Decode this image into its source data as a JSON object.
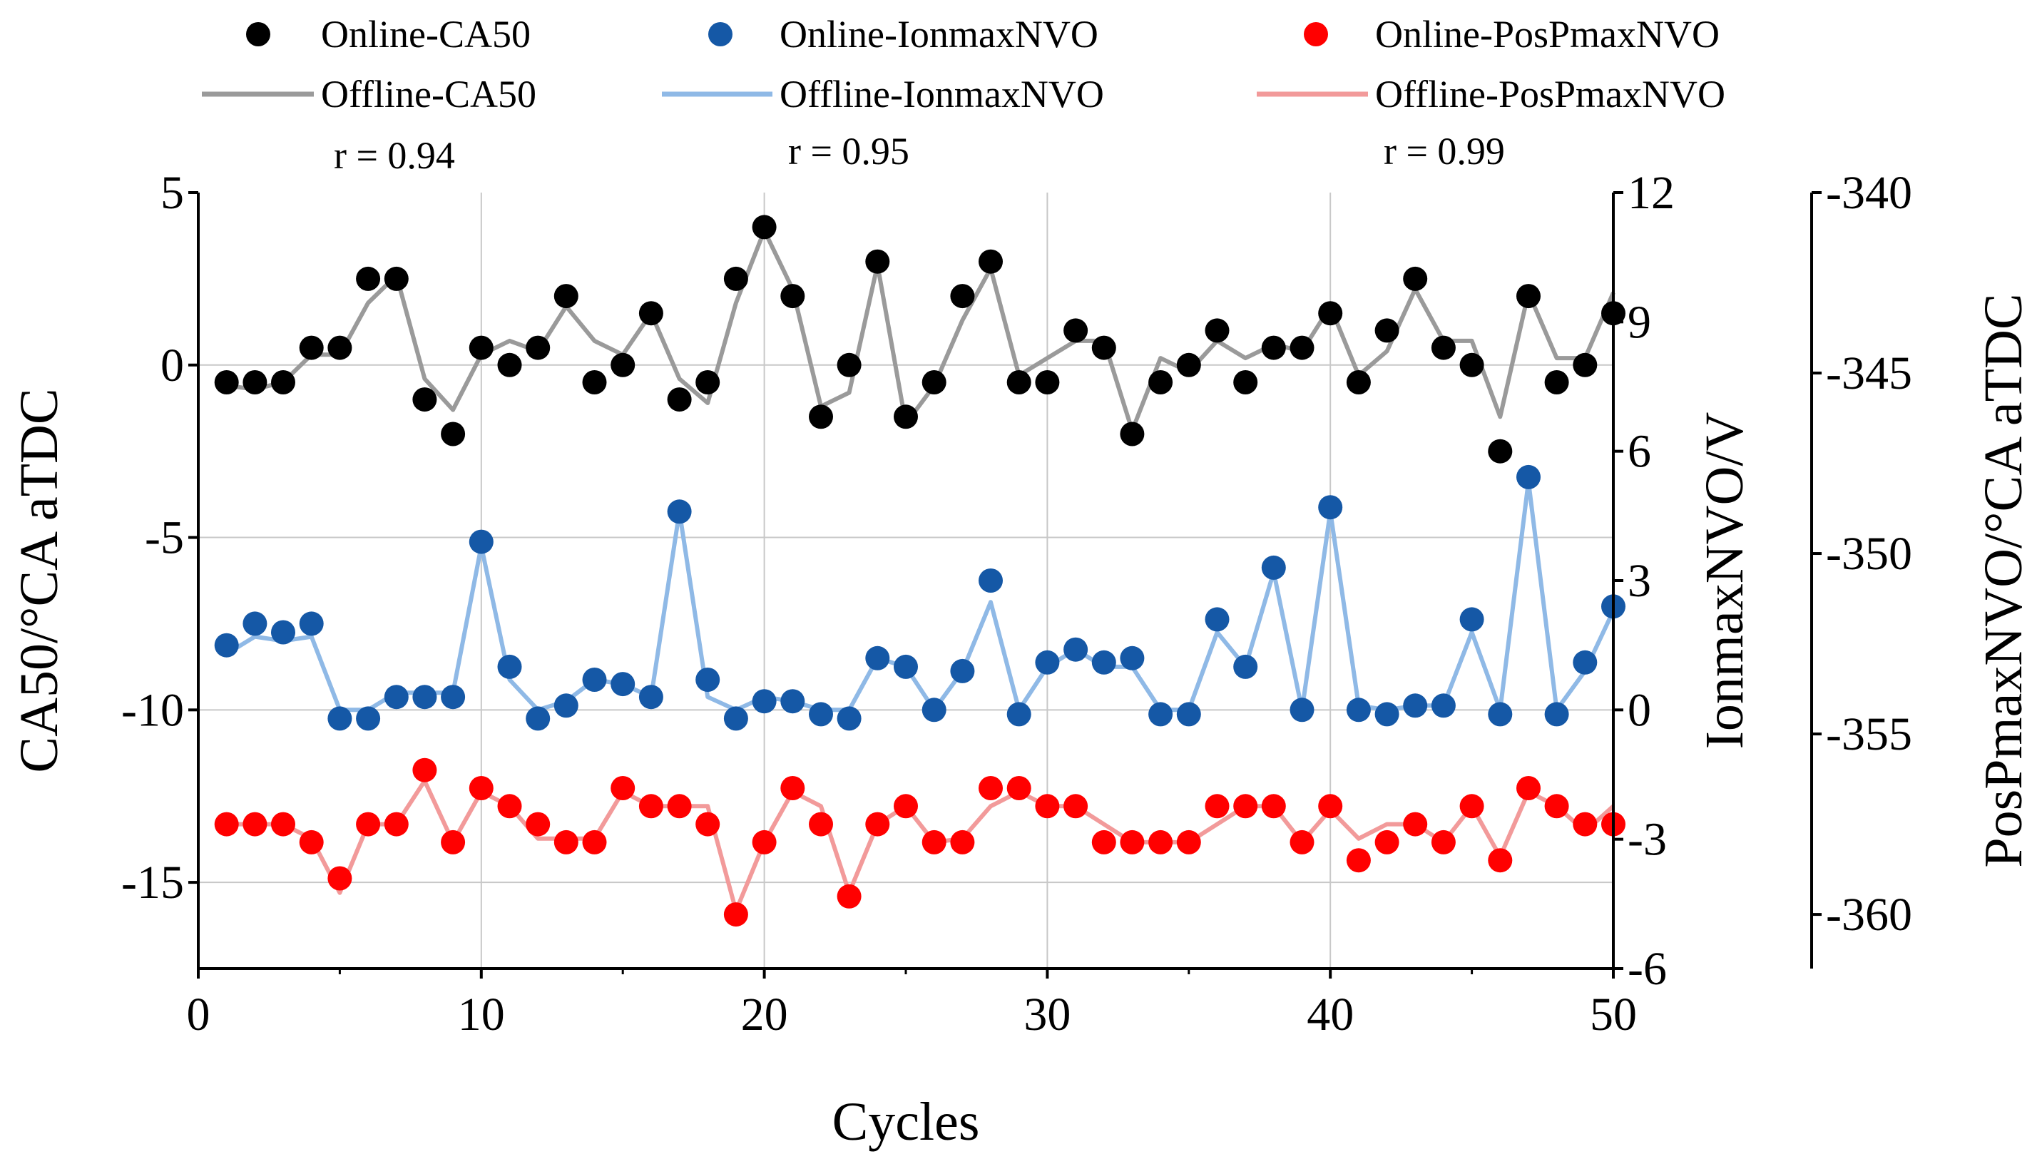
{
  "chart_data": {
    "type": "scatter+line",
    "xlabel": "Cycles",
    "xlim": [
      0,
      50
    ],
    "xticks": [
      0,
      10,
      20,
      30,
      40,
      50
    ],
    "grid": true,
    "axes": {
      "left": {
        "label": "CA50/°CA aTDC",
        "ylim": [
          -17.5,
          5
        ],
        "ticks": [
          5,
          0,
          -5,
          -10,
          -15
        ]
      },
      "right1": {
        "label": "IonmaxNVO/V",
        "ylim": [
          -6,
          12
        ],
        "ticks": [
          12,
          9,
          6,
          3,
          0,
          -3,
          -6
        ]
      },
      "right2": {
        "label": "PosPmaxNVO/°CA aTDC",
        "ylim": [
          -361.5,
          -340
        ],
        "ticks": [
          -340,
          -345,
          -350,
          -355,
          -360
        ]
      }
    },
    "legend": {
      "placement": "top",
      "items": [
        {
          "label": "Online-CA50",
          "kind": "marker",
          "color": "#000000"
        },
        {
          "label": "Online-IonmaxNVO",
          "kind": "marker",
          "color": "#1558a6"
        },
        {
          "label": "Online-PosPmaxNVO",
          "kind": "marker",
          "color": "#ff0000"
        },
        {
          "label": "Offline-CA50",
          "kind": "line",
          "color": "#9a9a9a"
        },
        {
          "label": "Offline-IonmaxNVO",
          "kind": "line",
          "color": "#8fb9e6"
        },
        {
          "label": "Offline-PosPmaxNVO",
          "kind": "line",
          "color": "#f29a9a"
        }
      ],
      "correlations": [
        "r = 0.94",
        "r = 0.95",
        "r = 0.99"
      ]
    },
    "x": [
      1,
      2,
      3,
      4,
      5,
      6,
      7,
      8,
      9,
      10,
      11,
      12,
      13,
      14,
      15,
      16,
      17,
      18,
      19,
      20,
      21,
      22,
      23,
      24,
      25,
      26,
      27,
      28,
      29,
      30,
      31,
      32,
      33,
      34,
      35,
      36,
      37,
      38,
      39,
      40,
      41,
      42,
      43,
      44,
      45,
      46,
      47,
      48,
      49,
      50
    ],
    "series": [
      {
        "name": "Online-CA50",
        "axis": "left",
        "kind": "marker",
        "color": "#000000",
        "values": [
          -0.5,
          -0.5,
          -0.5,
          0.5,
          0.5,
          2.5,
          2.5,
          -1,
          -2,
          0.5,
          0,
          0.5,
          2,
          -0.5,
          0,
          1.5,
          -1,
          -0.5,
          2.5,
          4,
          2,
          -1.5,
          0,
          3,
          -1.5,
          -0.5,
          2,
          3,
          -0.5,
          -0.5,
          1,
          0.5,
          -2,
          -0.5,
          0,
          1,
          -0.5,
          0.5,
          0.5,
          1.5,
          -0.5,
          1,
          2.5,
          0.5,
          0,
          -2.5,
          2,
          -0.5,
          0,
          1.5
        ]
      },
      {
        "name": "Offline-CA50",
        "axis": "left",
        "kind": "line",
        "color": "#9a9a9a",
        "values": [
          -0.6,
          -0.7,
          -0.5,
          0.3,
          0.3,
          1.8,
          2.6,
          -0.4,
          -1.3,
          0.3,
          0.7,
          0.4,
          1.7,
          0.7,
          0.3,
          1.5,
          -0.4,
          -1.1,
          1.8,
          3.9,
          2.2,
          -1.2,
          -0.8,
          2.9,
          -1.7,
          -0.6,
          1.3,
          2.8,
          -0.3,
          0.2,
          0.7,
          0.7,
          -1.9,
          0.2,
          -0.2,
          0.7,
          0.2,
          0.6,
          0.4,
          1.7,
          -0.3,
          0.4,
          2.2,
          0.7,
          0.7,
          -1.5,
          2.1,
          0.2,
          0.2,
          2.1
        ]
      },
      {
        "name": "Online-IonmaxNVO",
        "axis": "right1",
        "kind": "marker",
        "color": "#1558a6",
        "values": [
          1.5,
          2,
          1.8,
          2,
          -0.2,
          -0.2,
          0.3,
          0.3,
          0.3,
          3.9,
          1,
          -0.2,
          0.1,
          0.7,
          0.6,
          0.3,
          4.6,
          0.7,
          -0.2,
          0.2,
          0.2,
          -0.1,
          -0.2,
          1.2,
          1,
          0,
          0.9,
          3,
          -0.1,
          1.1,
          1.4,
          1.1,
          1.2,
          -0.1,
          -0.1,
          2.1,
          1,
          3.3,
          0,
          4.7,
          0,
          -0.1,
          0.1,
          0.1,
          2.1,
          -0.1,
          5.4,
          -0.1,
          1.1,
          2.4
        ]
      },
      {
        "name": "Offline-IonmaxNVO",
        "axis": "right1",
        "kind": "line",
        "color": "#8fb9e6",
        "values": [
          1.3,
          1.7,
          1.6,
          1.7,
          0,
          0,
          0.4,
          0.4,
          0.4,
          3.8,
          0.7,
          0,
          0.2,
          0.7,
          0.6,
          0.3,
          4.6,
          0.3,
          0,
          0.3,
          0.2,
          0,
          0,
          1.2,
          1,
          0,
          0.9,
          2.5,
          0,
          1,
          1.4,
          1,
          1,
          0,
          0,
          1.8,
          1,
          3.2,
          0,
          4.6,
          0.1,
          0,
          0.1,
          0.1,
          1.8,
          0,
          5.3,
          0,
          0.9,
          2.3
        ]
      },
      {
        "name": "Online-PosPmaxNVO",
        "axis": "right2",
        "kind": "marker",
        "color": "#ff0000",
        "values": [
          -357.5,
          -357.5,
          -357.5,
          -358,
          -359,
          -357.5,
          -357.5,
          -356,
          -358,
          -356.5,
          -357,
          -357.5,
          -358,
          -358,
          -356.5,
          -357,
          -357,
          -357.5,
          -360,
          -358,
          -356.5,
          -357.5,
          -359.5,
          -357.5,
          -357,
          -358,
          -358,
          -356.5,
          -356.5,
          -357,
          -357,
          -358,
          -358,
          -358,
          -358,
          -357,
          -357,
          -357,
          -358,
          -357,
          -358.5,
          -358,
          -357.5,
          -358,
          -357,
          -358.5,
          -356.5,
          -357,
          -357.5,
          -357.5
        ]
      },
      {
        "name": "Offline-PosPmaxNVO",
        "axis": "right2",
        "kind": "line",
        "color": "#f29a9a",
        "values": [
          -357.5,
          -357.5,
          -357.5,
          -357.9,
          -359.4,
          -357.5,
          -357.5,
          -356.3,
          -358,
          -356.6,
          -357,
          -357.9,
          -357.9,
          -357.9,
          -356.6,
          -357,
          -357,
          -357,
          -359.9,
          -358,
          -356.6,
          -357,
          -359.4,
          -357.5,
          -357,
          -358,
          -357.9,
          -357,
          -356.6,
          -357,
          -357,
          -357.5,
          -358,
          -358,
          -358,
          -357.5,
          -357,
          -357,
          -358,
          -357.1,
          -357.9,
          -357.5,
          -357.5,
          -358,
          -357,
          -358.4,
          -356.6,
          -357,
          -357.7,
          -357
        ]
      }
    ]
  }
}
